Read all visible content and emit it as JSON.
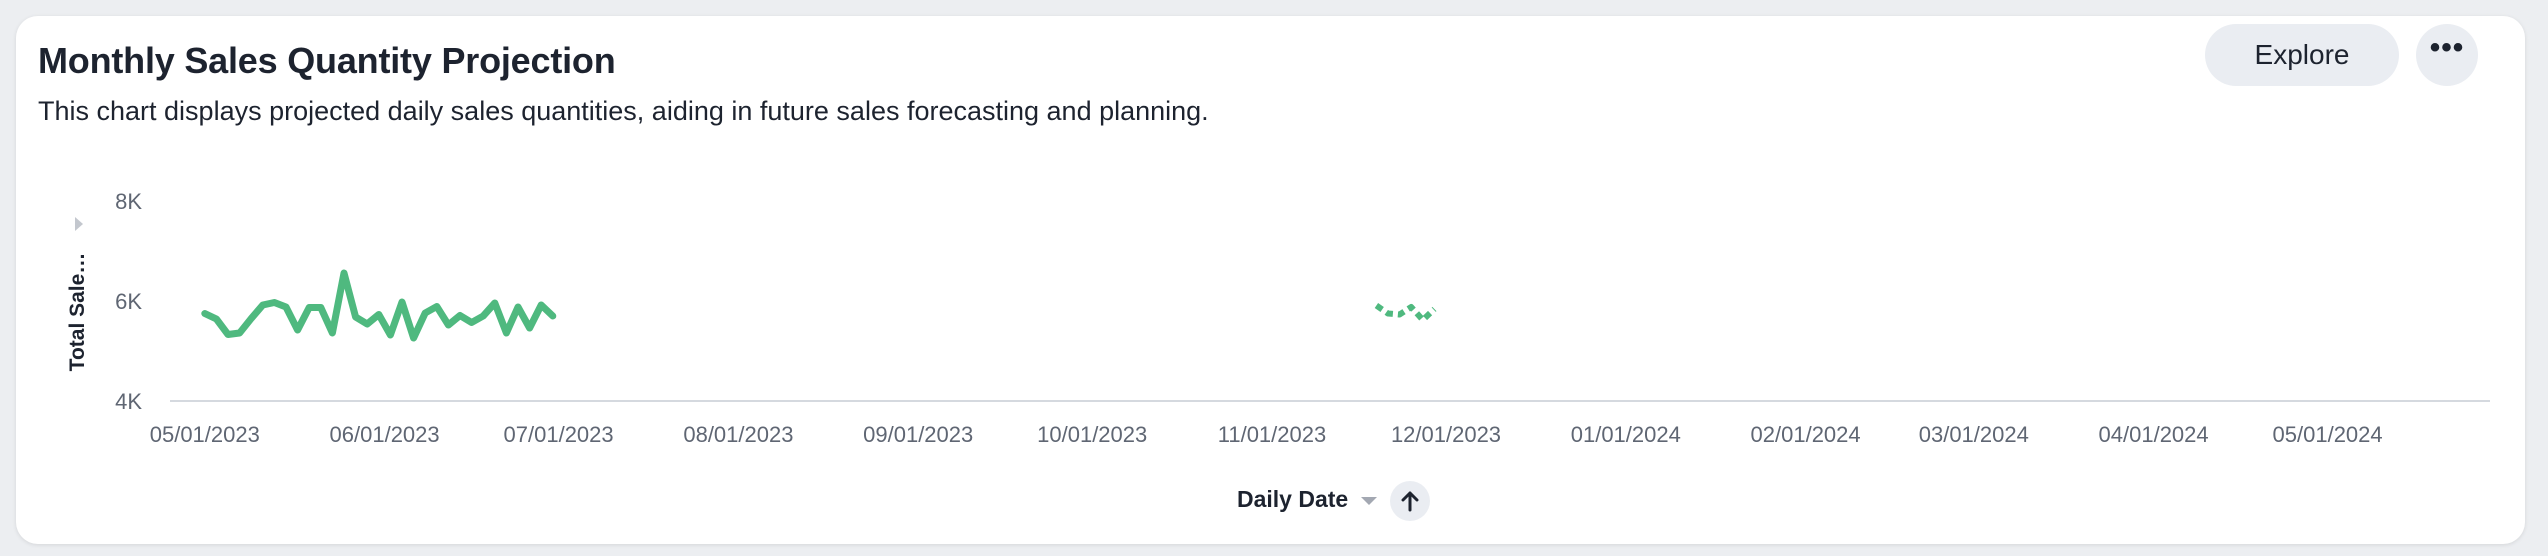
{
  "header": {
    "title": "Monthly Sales Quantity Projection",
    "subtitle": "This chart displays projected daily sales quantities, aiding in future sales forecasting and planning.",
    "explore_label": "Explore",
    "more_label": "•••"
  },
  "chart_data": {
    "type": "line",
    "xlabel": "Daily Date",
    "ylabel": "Total Sale…",
    "ylim": [
      4000,
      8000
    ],
    "y_ticks": [
      {
        "value": 8000,
        "label": "8K"
      },
      {
        "value": 6000,
        "label": "6K"
      },
      {
        "value": 4000,
        "label": "4K"
      }
    ],
    "x_start": "2023-04-25",
    "x_end": "2024-05-29",
    "x_ticks": [
      {
        "date": "2023-05-01",
        "label": "05/01/2023"
      },
      {
        "date": "2023-06-01",
        "label": "06/01/2023"
      },
      {
        "date": "2023-07-01",
        "label": "07/01/2023"
      },
      {
        "date": "2023-08-01",
        "label": "08/01/2023"
      },
      {
        "date": "2023-09-01",
        "label": "09/01/2023"
      },
      {
        "date": "2023-10-01",
        "label": "10/01/2023"
      },
      {
        "date": "2023-11-01",
        "label": "11/01/2023"
      },
      {
        "date": "2023-12-01",
        "label": "12/01/2023"
      },
      {
        "date": "2024-01-01",
        "label": "01/01/2024"
      },
      {
        "date": "2024-02-01",
        "label": "02/01/2024"
      },
      {
        "date": "2024-03-01",
        "label": "03/01/2024"
      },
      {
        "date": "2024-04-01",
        "label": "04/01/2024"
      },
      {
        "date": "2024-05-01",
        "label": "05/01/2024"
      }
    ],
    "color": "#4fb97f",
    "series": [
      {
        "style": "solid",
        "points": [
          [
            "2023-05-01",
            5750
          ],
          [
            "2023-05-03",
            5640
          ],
          [
            "2023-05-05",
            5330
          ],
          [
            "2023-05-07",
            5360
          ],
          [
            "2023-05-09",
            5650
          ],
          [
            "2023-05-11",
            5920
          ],
          [
            "2023-05-13",
            5970
          ],
          [
            "2023-05-15",
            5880
          ],
          [
            "2023-05-17",
            5420
          ],
          [
            "2023-05-19",
            5870
          ],
          [
            "2023-05-21",
            5870
          ],
          [
            "2023-05-23",
            5360
          ],
          [
            "2023-05-25",
            6560
          ],
          [
            "2023-05-27",
            5680
          ],
          [
            "2023-05-29",
            5540
          ],
          [
            "2023-05-31",
            5730
          ],
          [
            "2023-06-02",
            5320
          ],
          [
            "2023-06-04",
            5980
          ],
          [
            "2023-06-06",
            5260
          ],
          [
            "2023-06-08",
            5760
          ],
          [
            "2023-06-10",
            5890
          ],
          [
            "2023-06-12",
            5520
          ],
          [
            "2023-06-14",
            5710
          ],
          [
            "2023-06-16",
            5570
          ],
          [
            "2023-06-18",
            5700
          ],
          [
            "2023-06-20",
            5960
          ],
          [
            "2023-06-22",
            5360
          ],
          [
            "2023-06-24",
            5880
          ],
          [
            "2023-06-26",
            5460
          ],
          [
            "2023-06-28",
            5920
          ],
          [
            "2023-06-30",
            5700
          ]
        ]
      },
      {
        "style": "dashed",
        "points": [
          [
            "2023-11-19",
            5910
          ],
          [
            "2023-11-21",
            5750
          ],
          [
            "2023-11-23",
            5730
          ],
          [
            "2023-11-25",
            5880
          ],
          [
            "2023-11-27",
            5620
          ],
          [
            "2023-11-29",
            5840
          ]
        ]
      }
    ]
  },
  "sort": {
    "icon": "arrow-up-icon"
  }
}
